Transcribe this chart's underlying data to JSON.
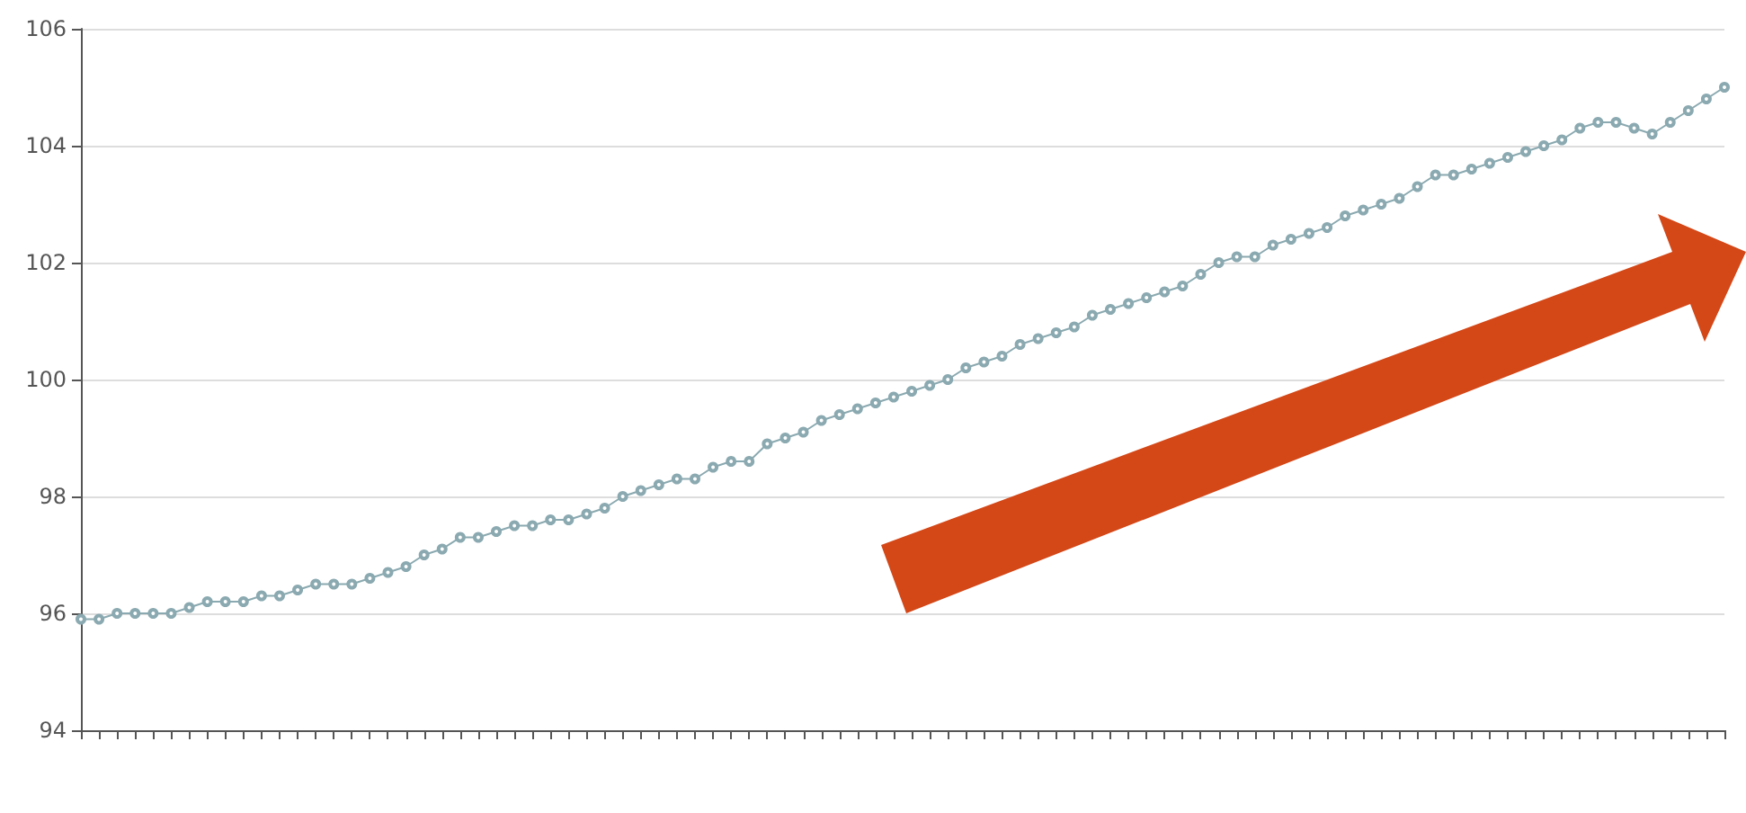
{
  "chart_data": {
    "type": "line",
    "categories": [
      null,
      null,
      null,
      null,
      null,
      null,
      null,
      null,
      null,
      null,
      null,
      null,
      null,
      null,
      null,
      null,
      null,
      null,
      null,
      null,
      null,
      null,
      null,
      null,
      null,
      null,
      null,
      null,
      null,
      null,
      null,
      null,
      null,
      null,
      null,
      null,
      null,
      null,
      null,
      null,
      null,
      null,
      null,
      null,
      null,
      null,
      null,
      null,
      null,
      null,
      null,
      null,
      null,
      null,
      null,
      null,
      null,
      null,
      null,
      null,
      null,
      null,
      null,
      null,
      null,
      null,
      null,
      null,
      null,
      null,
      null,
      null,
      null,
      null,
      null,
      null,
      null,
      null,
      null,
      null,
      null,
      null,
      null,
      null,
      null,
      null,
      null,
      null,
      null,
      null,
      null,
      null
    ],
    "series": [
      {
        "color": "#8aa9b0",
        "values": [
          95.9,
          95.9,
          96.0,
          96.0,
          96.0,
          96.0,
          96.1,
          96.2,
          96.2,
          96.2,
          96.3,
          96.3,
          96.4,
          96.5,
          96.5,
          96.5,
          96.6,
          96.7,
          96.8,
          97.0,
          97.1,
          97.3,
          97.3,
          97.4,
          97.5,
          97.5,
          97.6,
          97.6,
          97.7,
          97.8,
          98.0,
          98.1,
          98.2,
          98.3,
          98.3,
          98.5,
          98.6,
          98.6,
          98.9,
          99.0,
          99.1,
          99.3,
          99.4,
          99.5,
          99.6,
          99.7,
          99.8,
          99.9,
          100.0,
          100.2,
          100.3,
          100.4,
          100.6,
          100.7,
          100.8,
          100.9,
          101.1,
          101.2,
          101.3,
          101.4,
          101.5,
          101.6,
          101.8,
          102.0,
          102.1,
          102.1,
          102.3,
          102.4,
          102.5,
          102.6,
          102.8,
          102.9,
          103.0,
          103.1,
          103.3,
          103.5,
          103.5,
          103.6,
          103.7,
          103.8,
          103.9,
          104.0,
          104.1,
          104.3,
          104.4,
          104.4,
          104.3,
          104.2,
          104.4,
          104.6,
          104.8,
          105.0
        ]
      }
    ],
    "ylim": [
      94,
      106
    ],
    "yticks": [
      94,
      96,
      98,
      100,
      102,
      104,
      106
    ],
    "grid": "y",
    "tick_labels": "y",
    "marker": "circle",
    "line_style": "solid"
  }
}
